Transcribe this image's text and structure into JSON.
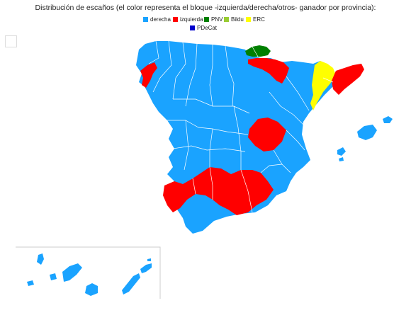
{
  "title": "Distribución de escaños (el color representa el bloque -izquierda/derecha/otros- ganador por provincia):",
  "legend": [
    {
      "label": "derecha",
      "color": "#1aa3ff"
    },
    {
      "label": "izquierda",
      "color": "#ff0000"
    },
    {
      "label": "PNV",
      "color": "#008000"
    },
    {
      "label": "Bildu",
      "color": "#99cc33"
    },
    {
      "label": "ERC",
      "color": "#ffff00"
    },
    {
      "label": "PDeCat",
      "color": "#0000cc"
    }
  ],
  "regions": [
    {
      "name": "Galicia costa (A Coruña/Pontevedra)",
      "winner": "izquierda"
    },
    {
      "name": "Bizkaia/Gipuzkoa",
      "winner": "PNV"
    },
    {
      "name": "Navarra/Álava",
      "winner": "izquierda"
    },
    {
      "name": "Cataluña (Lleida/Girona/Tarragona)",
      "winner": "ERC"
    },
    {
      "name": "Barcelona",
      "winner": "izquierda"
    },
    {
      "name": "Madrid",
      "winner": "izquierda"
    },
    {
      "name": "Andalucía (Huelva/Sevilla/Córdoba/Jaén/Granada)",
      "winner": "izquierda"
    },
    {
      "name": "Resto peninsular",
      "winner": "derecha"
    },
    {
      "name": "Islas Baleares",
      "winner": "derecha"
    },
    {
      "name": "Islas Canarias",
      "winner": "derecha"
    }
  ]
}
